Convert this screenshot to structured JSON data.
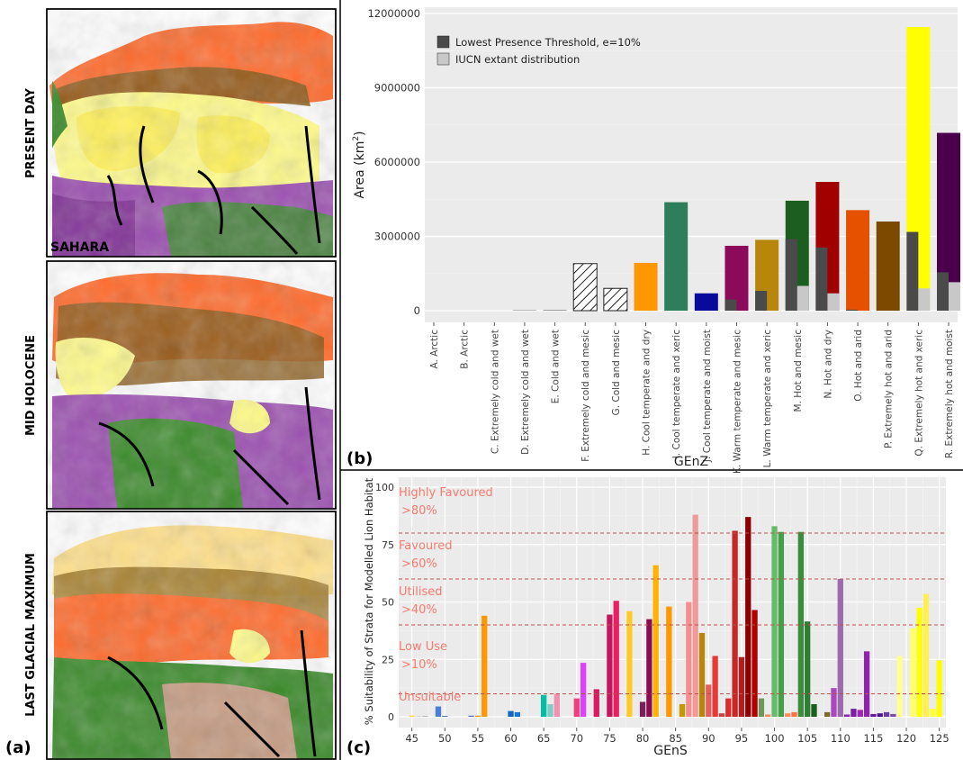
{
  "panel_a": {
    "label": "(a)",
    "maps": [
      {
        "period": "PRESENT DAY",
        "region": "SAHARA"
      },
      {
        "period": "MID HOLOCENE",
        "region": ""
      },
      {
        "period": "LAST GLACIAL MAXIMUM",
        "region": ""
      }
    ]
  },
  "chart_data": [
    {
      "panel": "(b)",
      "type": "bar",
      "xlabel": "GEnZ",
      "ylabel": "Area (km²)",
      "ylabel_main": "Area (km",
      "ylabel_sup": "2",
      "ylabel_end": ")",
      "ylim": [
        0,
        12000000
      ],
      "yticks": [
        0,
        3000000,
        6000000,
        9000000,
        12000000
      ],
      "legend_position": "top-left",
      "legend": [
        {
          "name": "Lowest Presence Threshold, e=10%",
          "color": "#4a4a4a"
        },
        {
          "name": "IUCN extant distribution",
          "color": "#c8c8c8"
        }
      ],
      "categories": [
        "A. Arctic",
        "B. Arctic",
        "C. Extremely cold and wet",
        "D. Extremely cold and wet",
        "E. Cold and wet",
        "F. Extremely cold and mesic",
        "G. Cold and mesic",
        "H. Cool temperate and dry",
        "I. Cool temperate and xeric",
        "J. Cool temperate and moist",
        "K. Warm temperate and mesic",
        "L. Warm temperate and xeric",
        "M. Hot and mesic",
        "N. Hot and dry",
        "O. Hot and arid",
        "P. Extremely hot and arid",
        "Q. Extremely hot and xeric",
        "R. Extremely hot and moist"
      ],
      "total_area": [
        0,
        0,
        0,
        20000,
        30000,
        1900000,
        900000,
        1930000,
        4380000,
        700000,
        2620000,
        2860000,
        4440000,
        5200000,
        4060000,
        3600000,
        11450000,
        7180000
      ],
      "colors": [
        "#cccccc",
        "#cccccc",
        "#cccccc",
        "#8a8a8a",
        "#8a8a8a",
        "hatch",
        "hatch",
        "#ff9800",
        "#2e7d5b",
        "#0a0a9a",
        "#8b0a5a",
        "#b8860b",
        "#1b5e20",
        "#a00000",
        "#e65100",
        "#7b4a00",
        "#ffff00",
        "#4a004a"
      ],
      "series": [
        {
          "name": "Lowest Presence Threshold, e=10%",
          "values": [
            0,
            0,
            0,
            0,
            0,
            0,
            0,
            0,
            0,
            0,
            450000,
            800000,
            2900000,
            2550000,
            40000,
            0,
            3180000,
            1550000
          ]
        },
        {
          "name": "IUCN extant distribution",
          "values": [
            0,
            0,
            0,
            0,
            0,
            0,
            0,
            0,
            0,
            0,
            0,
            0,
            1000000,
            700000,
            0,
            0,
            900000,
            1150000
          ]
        }
      ]
    },
    {
      "panel": "(c)",
      "type": "bar",
      "xlabel": "GEnS",
      "ylabel": "% Suitability of Strata for Modelled Lion Habitat",
      "ylim": [
        0,
        100
      ],
      "yticks": [
        0,
        25,
        50,
        75,
        100
      ],
      "xlim": [
        43,
        126
      ],
      "xticks": [
        45,
        50,
        55,
        60,
        65,
        70,
        75,
        80,
        85,
        90,
        95,
        100,
        105,
        110,
        115,
        120,
        125
      ],
      "thresholds": [
        {
          "value": 80,
          "label1": "Highly Favoured",
          "label2": ">80%",
          "label_y": 96
        },
        {
          "value": 60,
          "label1": "Favoured",
          "label2": ">60%",
          "label_y": 73
        },
        {
          "value": 40,
          "label1": "Utilised",
          "label2": ">40%",
          "label_y": 53
        },
        {
          "value": 10,
          "label1": "Low Use",
          "label2": ">10%",
          "label_y": 29
        },
        {
          "value": 0,
          "label1": "Unsuitable",
          "label2": "",
          "label_y": 7
        }
      ],
      "threshold_label_color": "#f47c6e",
      "x": [
        45,
        46,
        47,
        49,
        50,
        54,
        55,
        56,
        60,
        61,
        65,
        66,
        67,
        70,
        71,
        73,
        75,
        76,
        78,
        80,
        81,
        82,
        84,
        86,
        87,
        88,
        89,
        90,
        91,
        92,
        93,
        94,
        95,
        96,
        97,
        98,
        99,
        100,
        101,
        102,
        103,
        104,
        105,
        106,
        108,
        109,
        110,
        111,
        112,
        113,
        114,
        115,
        116,
        117,
        118,
        119,
        121,
        122,
        123,
        124,
        125
      ],
      "values": [
        0.5,
        0.3,
        0.3,
        4.5,
        0.3,
        0.5,
        0.5,
        44,
        2.5,
        2,
        9.5,
        5.5,
        10,
        8,
        23.5,
        12,
        44.5,
        50.5,
        46,
        6.5,
        42.5,
        66,
        48,
        5.5,
        50,
        88,
        36.5,
        14,
        26.5,
        1.5,
        8,
        81,
        26,
        87,
        46.5,
        8,
        1,
        83,
        80.5,
        1.5,
        2,
        80.5,
        41.5,
        5.5,
        2,
        12.5,
        60,
        1,
        3.5,
        3,
        28.5,
        1.2,
        1.5,
        2,
        1.2,
        26.5,
        38.5,
        47.5,
        53.5,
        3.5,
        24.5
      ],
      "colors": [
        "#ffd54f",
        "#cccccc",
        "#aaaaaa",
        "#4a7fd4",
        "#2255aa",
        "#5577cc",
        "#ff9800",
        "#ff9800",
        "#1565c0",
        "#1976d2",
        "#00bfa5",
        "#80cbc4",
        "#f48fb1",
        "#ec407a",
        "#e040fb",
        "#d81b60",
        "#c2185b",
        "#e91e63",
        "#ffca28",
        "#7b1f5a",
        "#880e4f",
        "#ffb300",
        "#ff9800",
        "#c49a00",
        "#f48f8f",
        "#ef9a9a",
        "#b8860b",
        "#e06060",
        "#e53935",
        "#d04040",
        "#d32f2f",
        "#c62828",
        "#b71c1c",
        "#8b0000",
        "#b00000",
        "#6a9a5a",
        "#ff8a65",
        "#66bb6a",
        "#43a047",
        "#ff8a65",
        "#ff7043",
        "#388e3c",
        "#2e7d32",
        "#1b5e20",
        "#7b6a2a",
        "#ab47bc",
        "#9c6aad",
        "#8e24aa",
        "#7b1fa2",
        "#9c27b0",
        "#8e24aa",
        "#6a1b9a",
        "#4a148c",
        "#6a3d9a",
        "#7a4aaa",
        "#ffff8d",
        "#ffff66",
        "#ffff00",
        "#ffee58",
        "#ffff33",
        "#ffff00"
      ]
    }
  ]
}
